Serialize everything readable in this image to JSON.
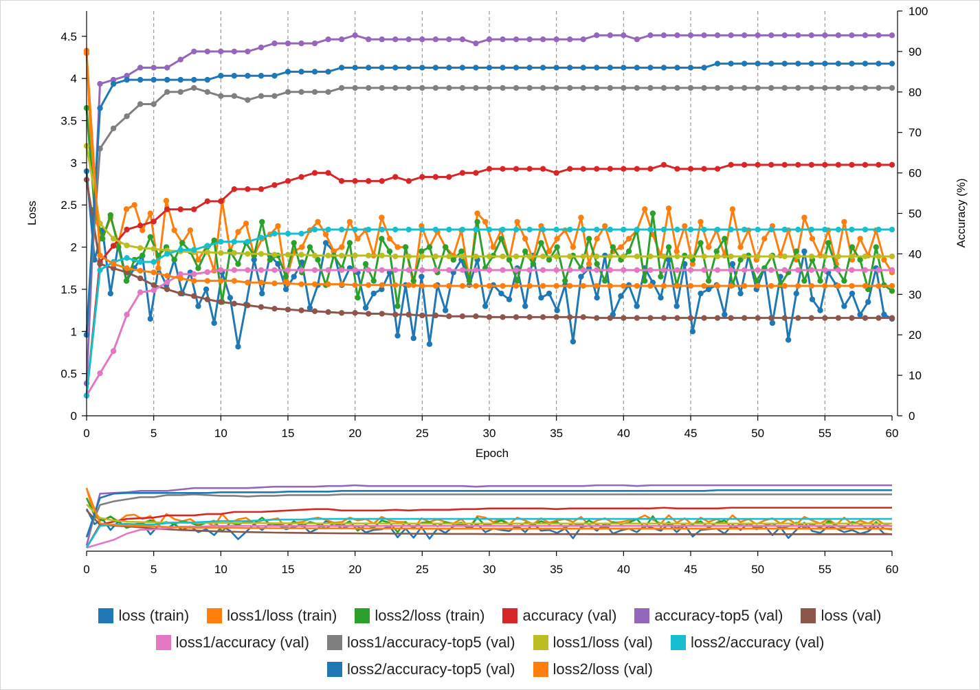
{
  "chart_data": {
    "type": "line",
    "xlabel": "Epoch",
    "ylabel": "Loss",
    "y2label": "Accuracy (%)",
    "xlim": [
      0,
      60
    ],
    "ylim": [
      0,
      4.8
    ],
    "y2lim": [
      0,
      100
    ],
    "x_ticks": [
      "0",
      "5",
      "10",
      "15",
      "20",
      "25",
      "30",
      "35",
      "40",
      "45",
      "50",
      "55",
      "60"
    ],
    "y_ticks": [
      "0",
      "0.5",
      "1",
      "1.5",
      "2",
      "2.5",
      "3",
      "3.5",
      "4",
      "4.5"
    ],
    "y2_ticks": [
      "0",
      "10",
      "20",
      "30",
      "40",
      "50",
      "60",
      "70",
      "80",
      "90",
      "100"
    ],
    "grid": "vertical dashed at every 5 epochs",
    "legend_position": "bottom",
    "overview": "a smaller navigator chart below the main chart shows all series over epochs 0-60",
    "series": [
      {
        "name": "loss (train)",
        "color": "#1f77b4",
        "axis": "left",
        "values": [
          2.9,
          1.85,
          2.2,
          1.45,
          2.05,
          1.6,
          1.75,
          1.9,
          1.15,
          1.75,
          1.55,
          1.85,
          1.45,
          1.7,
          1.3,
          1.5,
          1.1,
          1.7,
          1.4,
          0.82,
          1.32,
          1.85,
          1.45,
          1.9,
          1.8,
          1.5,
          1.65,
          1.82,
          1.28,
          1.55,
          2.05,
          1.95,
          1.55,
          1.75,
          1.7,
          1.28,
          1.45,
          1.5,
          1.7,
          0.95,
          1.55,
          0.92,
          1.65,
          0.85,
          1.55,
          1.25,
          1.7,
          1.85,
          1.55,
          1.85,
          1.3,
          1.55,
          1.45,
          1.38,
          1.75,
          1.3,
          1.9,
          1.4,
          1.45,
          1.25,
          1.55,
          0.88,
          1.65,
          1.75,
          1.4,
          1.9,
          1.2,
          1.42,
          1.55,
          1.3,
          1.75,
          1.58,
          1.4,
          1.85,
          1.3,
          1.8,
          1.0,
          1.45,
          1.5,
          1.55,
          1.2,
          1.8,
          1.45,
          1.9,
          1.5,
          1.75,
          1.1,
          1.65,
          0.9,
          1.45,
          1.95,
          1.38,
          1.25,
          1.7,
          1.55,
          1.3,
          1.45,
          1.2,
          1.35,
          1.75,
          1.2,
          1.15
        ]
      },
      {
        "name": "loss1/loss (train)",
        "color": "#ff7f0e",
        "axis": "left",
        "values": [
          4.33,
          2.35,
          2.1,
          2.35,
          2.05,
          2.45,
          2.5,
          2.2,
          2.4,
          1.75,
          2.55,
          2.2,
          2.05,
          2.2,
          1.85,
          2.0,
          1.72,
          2.55,
          1.95,
          2.18,
          2.28,
          1.9,
          2.1,
          2.15,
          2.25,
          1.6,
          1.95,
          2.0,
          2.2,
          2.3,
          2.15,
          1.95,
          2.0,
          2.3,
          2.1,
          2.2,
          1.9,
          2.35,
          2.1,
          2.0,
          2.0,
          1.55,
          2.25,
          2.0,
          2.18,
          2.0,
          1.9,
          2.2,
          1.6,
          2.4,
          2.3,
          2.0,
          2.2,
          1.85,
          2.3,
          2.1,
          1.85,
          2.25,
          1.95,
          2.1,
          2.2,
          2.0,
          2.35,
          1.8,
          2.1,
          2.25,
          1.95,
          2.0,
          2.1,
          2.2,
          2.45,
          2.15,
          1.9,
          2.46,
          1.95,
          2.25,
          1.8,
          2.3,
          2.0,
          2.2,
          1.9,
          2.45,
          2.0,
          2.2,
          1.85,
          2.1,
          2.25,
          1.9,
          2.2,
          1.85,
          2.35,
          2.1,
          1.9,
          2.2,
          1.8,
          2.3,
          1.85,
          2.1,
          1.9,
          2.2,
          1.85,
          1.7
        ]
      },
      {
        "name": "loss2/loss (train)",
        "color": "#2ca02c",
        "axis": "left",
        "values": [
          3.65,
          2.45,
          2.1,
          2.38,
          2.0,
          1.6,
          1.85,
          1.9,
          2.12,
          1.9,
          2.0,
          1.85,
          2.05,
          1.95,
          1.75,
          1.95,
          2.08,
          1.35,
          1.95,
          1.8,
          2.05,
          1.9,
          2.3,
          1.85,
          1.9,
          1.65,
          2.05,
          1.7,
          2.0,
          1.85,
          1.55,
          1.9,
          1.75,
          2.05,
          1.4,
          1.8,
          1.6,
          2.1,
          1.95,
          1.3,
          2.0,
          1.6,
          1.95,
          2.0,
          1.7,
          2.0,
          1.85,
          1.95,
          1.6,
          2.3,
          1.75,
          1.9,
          2.1,
          1.85,
          1.6,
          1.95,
          1.8,
          2.05,
          1.85,
          2.0,
          1.6,
          1.9,
          1.75,
          2.1,
          1.8,
          1.6,
          2.0,
          1.85,
          1.95,
          2.2,
          1.6,
          2.4,
          1.65,
          2.0,
          1.55,
          1.9,
          1.85,
          2.05,
          1.6,
          1.95,
          2.1,
          1.55,
          1.85,
          1.9,
          1.6,
          1.75,
          1.9,
          1.55,
          1.7,
          1.95,
          1.6,
          1.85,
          1.6,
          2.05,
          1.75,
          1.6,
          2.0,
          1.85,
          1.5,
          2.0,
          1.55,
          1.48
        ]
      },
      {
        "name": "accuracy (val)",
        "color": "#d62728",
        "axis": "right",
        "values": [
          5,
          38,
          42,
          46,
          47,
          48,
          51,
          51,
          51,
          53,
          53,
          56,
          56,
          56,
          57,
          58,
          59,
          60,
          60,
          58,
          58,
          58,
          58,
          59,
          58,
          59,
          59,
          59,
          60,
          60,
          61,
          61,
          61,
          61,
          61,
          60,
          61,
          61,
          61,
          61,
          61,
          61,
          61,
          62,
          61,
          61,
          61,
          61,
          62,
          62,
          62,
          62,
          62,
          62,
          62,
          62,
          62,
          62,
          62,
          62,
          62
        ]
      },
      {
        "name": "accuracy-top5 (val)",
        "color": "#9467bd",
        "axis": "right",
        "values": [
          8,
          82,
          83,
          84,
          86,
          86,
          86,
          88,
          90,
          90,
          90,
          90,
          90,
          91,
          92,
          92,
          92,
          92,
          93,
          93,
          94,
          93,
          93,
          93,
          93,
          93,
          93,
          93,
          93,
          92,
          93,
          93,
          93,
          93,
          93,
          93,
          93,
          93,
          94,
          94,
          94,
          93,
          94,
          94,
          94,
          94,
          94,
          94,
          94,
          94,
          94,
          94,
          94,
          94,
          94,
          94,
          94,
          94,
          94,
          94,
          94
        ]
      },
      {
        "name": "loss (val)",
        "color": "#8c564b",
        "axis": "left",
        "values": [
          2.8,
          1.8,
          1.75,
          1.7,
          1.63,
          1.55,
          1.5,
          1.45,
          1.42,
          1.38,
          1.35,
          1.33,
          1.31,
          1.29,
          1.27,
          1.26,
          1.25,
          1.24,
          1.23,
          1.22,
          1.22,
          1.21,
          1.21,
          1.2,
          1.2,
          1.19,
          1.19,
          1.18,
          1.18,
          1.18,
          1.17,
          1.17,
          1.17,
          1.17,
          1.17,
          1.17,
          1.17,
          1.17,
          1.16,
          1.16,
          1.16,
          1.16,
          1.16,
          1.16,
          1.16,
          1.16,
          1.16,
          1.16,
          1.16,
          1.16,
          1.16,
          1.16,
          1.16,
          1.16,
          1.16,
          1.16,
          1.16,
          1.16,
          1.16,
          1.16,
          1.16
        ]
      },
      {
        "name": "loss1/accuracy (val)",
        "color": "#e377c2",
        "axis": "right",
        "values": [
          5,
          10.5,
          16,
          25,
          30.5,
          31,
          33,
          35,
          35,
          35.5,
          36,
          36,
          36,
          36,
          36,
          36,
          36,
          36,
          36,
          36,
          36,
          36,
          36,
          36,
          36,
          36,
          36,
          36,
          36,
          36,
          36,
          36,
          36,
          36,
          36,
          36,
          36,
          36,
          36,
          36,
          36,
          36,
          36,
          36,
          36,
          36,
          36,
          36,
          36,
          36,
          36,
          36,
          36,
          36,
          36,
          36,
          36,
          36,
          36,
          36,
          36
        ]
      },
      {
        "name": "loss1/accuracy-top5 (val)",
        "color": "#7f7f7f",
        "axis": "right",
        "values": [
          20,
          66,
          71,
          74,
          77,
          77,
          80,
          80,
          81,
          80,
          79,
          79,
          78,
          79,
          79,
          80,
          80,
          80,
          80,
          81,
          81,
          81,
          81,
          81,
          81,
          81,
          81,
          81,
          81,
          81,
          81,
          81,
          81,
          81,
          81,
          81,
          81,
          81,
          81,
          81,
          81,
          81,
          81,
          81,
          81,
          81,
          81,
          81,
          81,
          81,
          81,
          81,
          81,
          81,
          81,
          81,
          81,
          81,
          81,
          81,
          81
        ]
      },
      {
        "name": "loss1/loss (val)",
        "color": "#bcbd22",
        "axis": "left",
        "values": [
          3.2,
          2.28,
          2.1,
          2.02,
          1.99,
          1.98,
          1.96,
          1.95,
          1.94,
          1.94,
          1.93,
          1.93,
          1.92,
          1.92,
          1.91,
          1.91,
          1.91,
          1.9,
          1.9,
          1.9,
          1.9,
          1.9,
          1.9,
          1.89,
          1.89,
          1.89,
          1.89,
          1.89,
          1.89,
          1.89,
          1.89,
          1.89,
          1.89,
          1.89,
          1.89,
          1.89,
          1.89,
          1.89,
          1.89,
          1.89,
          1.89,
          1.89,
          1.89,
          1.89,
          1.89,
          1.89,
          1.89,
          1.89,
          1.89,
          1.89,
          1.89,
          1.89,
          1.89,
          1.89,
          1.89,
          1.89,
          1.89,
          1.89,
          1.89,
          1.89,
          1.89
        ]
      },
      {
        "name": "loss2/accuracy (val)",
        "color": "#17becf",
        "axis": "right",
        "values": [
          5,
          36,
          38,
          39,
          38,
          38,
          40,
          41,
          41,
          42,
          43,
          43,
          43,
          44,
          45,
          45,
          45,
          46,
          46,
          46,
          46,
          46,
          46,
          46,
          46,
          46,
          46,
          46,
          46,
          46,
          46,
          46,
          46,
          46,
          46,
          46,
          46,
          46,
          46,
          46,
          46,
          46,
          46,
          46,
          46,
          46,
          46,
          46,
          46,
          46,
          46,
          46,
          46,
          46,
          46,
          46,
          46,
          46,
          46,
          46,
          46
        ]
      },
      {
        "name": "loss2/accuracy-top5 (val)",
        "color": "#1f77b4",
        "axis": "right",
        "values": [
          20,
          76,
          82,
          83,
          83,
          83,
          83,
          83,
          83,
          83,
          84,
          84,
          84,
          84,
          84,
          85,
          85,
          85,
          85,
          86,
          86,
          86,
          86,
          86,
          86,
          86,
          86,
          86,
          86,
          86,
          86,
          86,
          86,
          86,
          86,
          86,
          86,
          86,
          86,
          86,
          86,
          86,
          86,
          86,
          86,
          86,
          86,
          87,
          87,
          87,
          87,
          87,
          87,
          87,
          87,
          87,
          87,
          87,
          87,
          87,
          87
        ]
      },
      {
        "name": "loss2/loss (val)",
        "color": "#ff7f0e",
        "axis": "left",
        "values": [
          4.3,
          1.9,
          1.8,
          1.75,
          1.72,
          1.7,
          1.66,
          1.63,
          1.6,
          1.6,
          1.6,
          1.6,
          1.58,
          1.58,
          1.57,
          1.57,
          1.56,
          1.56,
          1.56,
          1.56,
          1.55,
          1.55,
          1.55,
          1.55,
          1.55,
          1.54,
          1.54,
          1.54,
          1.54,
          1.54,
          1.54,
          1.54,
          1.54,
          1.54,
          1.54,
          1.54,
          1.54,
          1.54,
          1.54,
          1.54,
          1.54,
          1.54,
          1.54,
          1.54,
          1.54,
          1.54,
          1.54,
          1.54,
          1.54,
          1.54,
          1.54,
          1.54,
          1.54,
          1.54,
          1.54,
          1.54,
          1.54,
          1.54,
          1.54,
          1.54,
          1.54
        ]
      }
    ]
  }
}
